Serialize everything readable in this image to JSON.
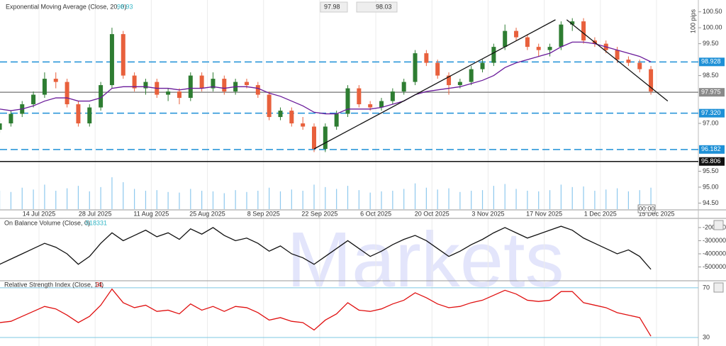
{
  "chart_data": [
    {
      "type": "candlestick",
      "title": "Exponential Moving Average (Close, 20, 0)",
      "bid": 97.98,
      "ask": 98.03,
      "y_label": "100 pips",
      "time_label": "00:00",
      "watermark": "Markets",
      "ylim": [
        94.31,
        100.87
      ],
      "yticks": [
        {
          "value": 100.5,
          "label": "100.50"
        },
        {
          "value": 100,
          "label": "100.00"
        },
        {
          "value": 99.5,
          "label": "99.50"
        },
        {
          "value": 98.5,
          "label": "98.50"
        },
        {
          "value": 97,
          "label": "97.00"
        },
        {
          "value": 95.5,
          "label": "95.50"
        },
        {
          "value": 95,
          "label": "95.00"
        },
        {
          "value": 94.5,
          "label": "94.50"
        }
      ],
      "xticks": [
        {
          "value": "2025-07-14",
          "label": "14 Jul 2025"
        },
        {
          "value": "2025-07-28",
          "label": "28 Jul 2025"
        },
        {
          "value": "2025-08-11",
          "label": "11 Aug 2025"
        },
        {
          "value": "2025-08-25",
          "label": "25 Aug 2025"
        },
        {
          "value": "2025-09-08",
          "label": "8 Sep 2025"
        },
        {
          "value": "2025-09-22",
          "label": "22 Sep 2025"
        },
        {
          "value": "2025-10-06",
          "label": "6 Oct 2025"
        },
        {
          "value": "2025-10-20",
          "label": "20 Oct 2025"
        },
        {
          "value": "2025-11-03",
          "label": "3 Nov 2025"
        },
        {
          "value": "2025-11-17",
          "label": "17 Nov 2025"
        },
        {
          "value": "2025-12-01",
          "label": "1 Dec 2025"
        },
        {
          "value": "2025-12-15",
          "label": "15 Dec 2025"
        }
      ],
      "colors": {
        "up": "#2e7d32",
        "down": "#e8603c"
      },
      "x": [
        "2025-07-03",
        "2025-07-07",
        "2025-07-09",
        "2025-07-11",
        "2025-07-15",
        "2025-07-17",
        "2025-07-21",
        "2025-07-23",
        "2025-07-25",
        "2025-07-29",
        "2025-07-31",
        "2025-08-04",
        "2025-08-06",
        "2025-08-08",
        "2025-08-12",
        "2025-08-14",
        "2025-08-18",
        "2025-08-20",
        "2025-08-22",
        "2025-08-26",
        "2025-08-28",
        "2025-09-01",
        "2025-09-03",
        "2025-09-05",
        "2025-09-09",
        "2025-09-11",
        "2025-09-15",
        "2025-09-17",
        "2025-09-19",
        "2025-09-23",
        "2025-09-25",
        "2025-09-29",
        "2025-10-01",
        "2025-10-03",
        "2025-10-07",
        "2025-10-09",
        "2025-10-13",
        "2025-10-15",
        "2025-10-17",
        "2025-10-21",
        "2025-10-23",
        "2025-10-27",
        "2025-10-29",
        "2025-10-31",
        "2025-11-04",
        "2025-11-06",
        "2025-11-10",
        "2025-11-12",
        "2025-11-14",
        "2025-11-18",
        "2025-11-20",
        "2025-11-24",
        "2025-11-26",
        "2025-11-28",
        "2025-12-02",
        "2025-12-04",
        "2025-12-08",
        "2025-12-10",
        "2025-12-12"
      ],
      "candles": [
        [
          96.8,
          97.1,
          96.7,
          97.0
        ],
        [
          97.0,
          97.4,
          96.9,
          97.3
        ],
        [
          97.3,
          97.7,
          97.2,
          97.6
        ],
        [
          97.6,
          98.0,
          97.5,
          97.9
        ],
        [
          97.9,
          98.6,
          97.8,
          98.4
        ],
        [
          98.4,
          98.6,
          98.1,
          98.3
        ],
        [
          98.3,
          98.4,
          97.5,
          97.6
        ],
        [
          97.6,
          97.7,
          96.9,
          97.0
        ],
        [
          97.0,
          97.6,
          96.9,
          97.5
        ],
        [
          97.5,
          98.3,
          97.4,
          98.2
        ],
        [
          98.2,
          100.0,
          98.1,
          99.8
        ],
        [
          99.8,
          99.9,
          98.4,
          98.5
        ],
        [
          98.5,
          98.6,
          98.0,
          98.1
        ],
        [
          98.1,
          98.4,
          97.9,
          98.3
        ],
        [
          98.3,
          98.4,
          97.8,
          97.9
        ],
        [
          97.9,
          98.1,
          97.7,
          98.0
        ],
        [
          98.0,
          98.1,
          97.6,
          97.8
        ],
        [
          97.8,
          98.6,
          97.7,
          98.5
        ],
        [
          98.5,
          98.6,
          98.0,
          98.1
        ],
        [
          98.1,
          98.6,
          98.0,
          98.4
        ],
        [
          98.4,
          98.5,
          97.9,
          98.0
        ],
        [
          98.0,
          98.4,
          97.9,
          98.3
        ],
        [
          98.3,
          98.4,
          98.1,
          98.2
        ],
        [
          98.2,
          98.3,
          97.8,
          97.9
        ],
        [
          97.9,
          98.0,
          97.1,
          97.2
        ],
        [
          97.2,
          97.5,
          97.1,
          97.4
        ],
        [
          97.4,
          97.5,
          96.9,
          97.0
        ],
        [
          97.0,
          97.2,
          96.8,
          96.9
        ],
        [
          96.9,
          97.0,
          96.1,
          96.2
        ],
        [
          96.2,
          97.0,
          96.1,
          96.9
        ],
        [
          96.9,
          97.4,
          96.8,
          97.3
        ],
        [
          97.3,
          98.2,
          97.2,
          98.1
        ],
        [
          98.1,
          98.2,
          97.5,
          97.6
        ],
        [
          97.6,
          97.7,
          97.4,
          97.5
        ],
        [
          97.5,
          97.8,
          97.4,
          97.7
        ],
        [
          97.7,
          98.1,
          97.6,
          98.0
        ],
        [
          98.0,
          98.4,
          97.9,
          98.3
        ],
        [
          98.3,
          99.3,
          98.2,
          99.2
        ],
        [
          99.2,
          99.3,
          98.8,
          98.9
        ],
        [
          98.9,
          99.0,
          98.4,
          98.5
        ],
        [
          98.5,
          98.6,
          97.9,
          98.2
        ],
        [
          98.2,
          98.4,
          98.1,
          98.3
        ],
        [
          98.3,
          98.8,
          98.2,
          98.7
        ],
        [
          98.7,
          99.0,
          98.6,
          98.9
        ],
        [
          98.9,
          99.5,
          98.8,
          99.4
        ],
        [
          99.4,
          100.1,
          99.3,
          99.9
        ],
        [
          99.9,
          100.0,
          99.6,
          99.7
        ],
        [
          99.7,
          99.8,
          99.3,
          99.4
        ],
        [
          99.4,
          99.5,
          99.1,
          99.3
        ],
        [
          99.3,
          99.5,
          99.1,
          99.4
        ],
        [
          99.4,
          100.2,
          99.3,
          100.1
        ],
        [
          100.1,
          100.3,
          99.9,
          100.2
        ],
        [
          100.2,
          100.3,
          99.5,
          99.6
        ],
        [
          99.6,
          99.7,
          99.4,
          99.5
        ],
        [
          99.5,
          99.6,
          99.2,
          99.3
        ],
        [
          99.3,
          99.4,
          98.9,
          99.0
        ],
        [
          99.0,
          99.1,
          98.8,
          98.9
        ],
        [
          98.9,
          99.0,
          98.6,
          98.7
        ],
        [
          98.7,
          98.8,
          97.9,
          98.0
        ]
      ],
      "ema": {
        "color": "#6a1b9a",
        "values": [
          97.45,
          97.4,
          97.45,
          97.55,
          97.7,
          97.8,
          97.8,
          97.7,
          97.7,
          97.8,
          98.1,
          98.15,
          98.15,
          98.15,
          98.1,
          98.1,
          98.05,
          98.1,
          98.1,
          98.15,
          98.1,
          98.15,
          98.15,
          98.1,
          97.95,
          97.85,
          97.7,
          97.55,
          97.35,
          97.3,
          97.3,
          97.45,
          97.45,
          97.45,
          97.5,
          97.6,
          97.7,
          97.9,
          98.0,
          98.05,
          98.1,
          98.15,
          98.25,
          98.35,
          98.5,
          98.75,
          98.9,
          99.0,
          99.1,
          99.2,
          99.4,
          99.55,
          99.55,
          99.5,
          99.4,
          99.3,
          99.2,
          99.1,
          98.93
        ]
      },
      "volume": {
        "color": "#8ec9ee",
        "values": [
          30,
          28,
          35,
          32,
          40,
          30,
          34,
          38,
          29,
          36,
          52,
          44,
          33,
          30,
          31,
          28,
          27,
          33,
          30,
          29,
          26,
          31,
          28,
          30,
          35,
          29,
          32,
          30,
          40,
          36,
          33,
          38,
          31,
          27,
          29,
          30,
          33,
          42,
          35,
          32,
          34,
          28,
          30,
          31,
          38,
          41,
          33,
          30,
          29,
          31,
          40,
          36,
          37,
          30,
          32,
          34,
          29,
          31,
          35
        ]
      },
      "levels": [
        {
          "value": 98.928,
          "color": "#1e90d6",
          "style": "dashed"
        },
        {
          "value": 97.975,
          "color": "#8a8a8a",
          "style": "solid"
        },
        {
          "value": 97.32,
          "label": "97.320",
          "color": "#1e90d6",
          "style": "dashed"
        },
        {
          "value": 96.182,
          "color": "#1e90d6",
          "style": "dashed"
        },
        {
          "value": 95.806,
          "color": "#111111",
          "style": "solid"
        }
      ],
      "trendlines": [
        {
          "color": "#111111",
          "x": [
            "2025-09-19",
            "2025-11-19"
          ],
          "y": [
            96.2,
            100.25
          ]
        },
        {
          "color": "#111111",
          "x": [
            "2025-11-21",
            "2025-12-17"
          ],
          "y": [
            100.25,
            97.7
          ]
        }
      ]
    },
    {
      "type": "line",
      "title": "On Balance Volume (Close, 0)",
      "color": "#111111",
      "ylim": [
        -600000,
        -130000
      ],
      "yticks": [
        -200000,
        -300000,
        -400000,
        -500000
      ],
      "values": [
        -480000,
        -440000,
        -400000,
        -360000,
        -320000,
        -350000,
        -400000,
        -480000,
        -420000,
        -320000,
        -240000,
        -300000,
        -260000,
        -220000,
        -270000,
        -240000,
        -290000,
        -210000,
        -250000,
        -200000,
        -260000,
        -300000,
        -280000,
        -320000,
        -380000,
        -340000,
        -400000,
        -430000,
        -480000,
        -420000,
        -360000,
        -300000,
        -360000,
        -420000,
        -380000,
        -330000,
        -290000,
        -260000,
        -300000,
        -360000,
        -420000,
        -380000,
        -330000,
        -290000,
        -240000,
        -200000,
        -240000,
        -280000,
        -250000,
        -220000,
        -190000,
        -220000,
        -280000,
        -320000,
        -360000,
        -400000,
        -370000,
        -420000,
        -518331
      ]
    },
    {
      "type": "line",
      "title": "Relative Strength Index (Close, 14)",
      "color": "#e01010",
      "level_color": "#7ec8e3",
      "ylim": [
        23.7,
        75.1
      ],
      "yticks": [
        70,
        30
      ],
      "values": [
        42,
        43,
        47,
        51,
        55,
        53,
        48,
        42,
        47,
        56,
        69,
        58,
        54,
        56,
        51,
        52,
        49,
        57,
        52,
        55,
        51,
        55,
        54,
        50,
        44,
        46,
        43,
        42,
        36,
        44,
        49,
        58,
        52,
        51,
        53,
        57,
        60,
        66,
        62,
        57,
        54,
        55,
        58,
        60,
        64,
        68,
        65,
        60,
        59,
        60,
        67,
        67,
        58,
        56,
        54,
        50,
        48,
        46,
        31
      ]
    }
  ]
}
